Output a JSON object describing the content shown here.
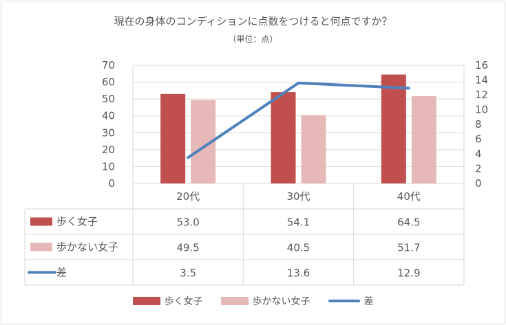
{
  "title": "現在の身体のコンディションに点数をつけると何点ですか？",
  "subtitle": "（単位：点）",
  "colors": {
    "walk": "#c0504d",
    "nowalk": "#e6b9b8",
    "diff": "#4f81bd",
    "grid": "#d9d9d9"
  },
  "chart_data": {
    "type": "bar",
    "categories": [
      "20代",
      "30代",
      "40代"
    ],
    "series": [
      {
        "name": "歩く女子",
        "type": "bar",
        "axis": "left",
        "values": [
          53.0,
          54.1,
          64.5
        ],
        "labels": [
          "53.0",
          "54.1",
          "64.5"
        ]
      },
      {
        "name": "歩かない女子",
        "type": "bar",
        "axis": "left",
        "values": [
          49.5,
          40.5,
          51.7
        ],
        "labels": [
          "49.5",
          "40.5",
          "51.7"
        ]
      },
      {
        "name": "差",
        "type": "line",
        "axis": "right",
        "values": [
          3.5,
          13.6,
          12.9
        ],
        "labels": [
          "3.5",
          "13.6",
          "12.9"
        ]
      }
    ],
    "ylim_left": [
      0,
      70
    ],
    "yticks_left": [
      "0",
      "10",
      "20",
      "30",
      "40",
      "50",
      "60",
      "70"
    ],
    "ylim_right": [
      0,
      16
    ],
    "yticks_right": [
      "0",
      "2",
      "4",
      "6",
      "8",
      "10",
      "12",
      "14",
      "16"
    ],
    "grid": true,
    "legend": "bottom",
    "data_table": true
  }
}
